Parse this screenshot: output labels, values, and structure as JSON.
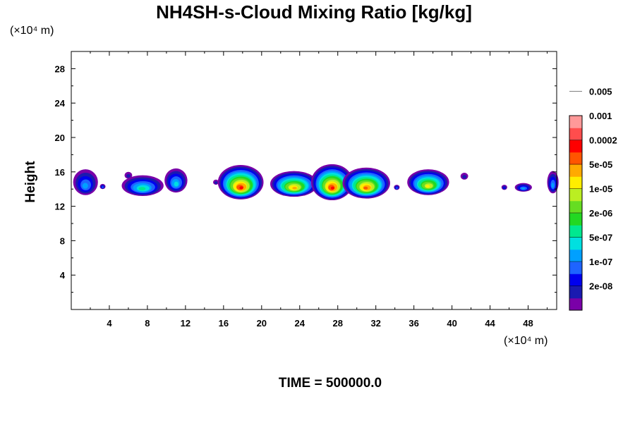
{
  "chart_data": {
    "type": "heatmap",
    "title": "NH4SH-s-Cloud Mixing Ratio [kg/kg]",
    "ylabel": "Height",
    "xlabel": "",
    "x_unit": "(×10⁴ m)",
    "y_unit": "(×10⁴ m)",
    "xlim": [
      0,
      51
    ],
    "ylim": [
      0,
      30
    ],
    "x_ticks": [
      4,
      8,
      12,
      16,
      20,
      24,
      28,
      32,
      36,
      40,
      44,
      48
    ],
    "y_ticks": [
      4,
      8,
      12,
      16,
      20,
      24,
      28
    ],
    "x_tick_labels": [
      "4",
      "8",
      "12",
      "16",
      "20",
      "24",
      "28",
      "32",
      "36",
      "40",
      "44",
      "48"
    ],
    "y_tick_labels": [
      "4",
      "8",
      "12",
      "16",
      "20",
      "24",
      "28"
    ],
    "colorbar": {
      "levels": [
        "2e-08",
        "1e-07",
        "5e-07",
        "2e-06",
        "1e-05",
        "5e-05",
        "0.0002",
        "0.001",
        "0.005"
      ],
      "colors": [
        "#7a00a8",
        "#1a1ab0",
        "#0000ee",
        "#1e64ff",
        "#00a0ff",
        "#00e0e0",
        "#00e890",
        "#22d822",
        "#66dd22",
        "#bbee22",
        "#ffee00",
        "#ffaa00",
        "#ff5500",
        "#ff0000",
        "#ff4d4d",
        "#ff9999"
      ]
    },
    "cloud_blobs": [
      {
        "x": 1.5,
        "y": 14.8,
        "w": 1.3,
        "h": 1.5,
        "peak": 4
      },
      {
        "x": 3.3,
        "y": 14.3,
        "w": 0.3,
        "h": 0.3,
        "peak": 3
      },
      {
        "x": 7.5,
        "y": 14.4,
        "w": 2.2,
        "h": 1.2,
        "peak": 6
      },
      {
        "x": 6.0,
        "y": 15.6,
        "w": 0.4,
        "h": 0.4,
        "peak": 1
      },
      {
        "x": 11.0,
        "y": 15.0,
        "w": 1.2,
        "h": 1.4,
        "peak": 5
      },
      {
        "x": 17.8,
        "y": 14.8,
        "w": 2.4,
        "h": 2.0,
        "peak": 13
      },
      {
        "x": 15.2,
        "y": 14.8,
        "w": 0.3,
        "h": 0.3,
        "peak": 1
      },
      {
        "x": 23.4,
        "y": 14.6,
        "w": 2.5,
        "h": 1.5,
        "peak": 11
      },
      {
        "x": 27.4,
        "y": 14.8,
        "w": 2.2,
        "h": 2.1,
        "peak": 13
      },
      {
        "x": 31.0,
        "y": 14.7,
        "w": 2.5,
        "h": 1.8,
        "peak": 12
      },
      {
        "x": 34.2,
        "y": 14.2,
        "w": 0.3,
        "h": 0.3,
        "peak": 3
      },
      {
        "x": 37.5,
        "y": 14.8,
        "w": 2.2,
        "h": 1.5,
        "peak": 10
      },
      {
        "x": 41.3,
        "y": 15.5,
        "w": 0.4,
        "h": 0.4,
        "peak": 1
      },
      {
        "x": 45.5,
        "y": 14.2,
        "w": 0.3,
        "h": 0.3,
        "peak": 2
      },
      {
        "x": 47.5,
        "y": 14.2,
        "w": 0.9,
        "h": 0.5,
        "peak": 4
      },
      {
        "x": 50.6,
        "y": 14.8,
        "w": 0.6,
        "h": 1.3,
        "peak": 4
      }
    ],
    "time_label": "TIME = 500000.0"
  }
}
